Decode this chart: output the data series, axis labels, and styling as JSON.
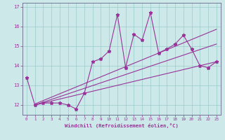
{
  "xlabel": "Windchill (Refroidissement éolien,°C)",
  "background_color": "#cce8e8",
  "line_color": "#993399",
  "grid_color": "#99cccc",
  "x_data": [
    0,
    1,
    2,
    3,
    4,
    5,
    6,
    7,
    8,
    9,
    10,
    11,
    12,
    13,
    14,
    15,
    16,
    17,
    18,
    19,
    20,
    21,
    22,
    23
  ],
  "y_main": [
    13.4,
    12.0,
    12.1,
    12.1,
    12.1,
    12.0,
    11.8,
    12.6,
    14.2,
    14.35,
    14.75,
    16.6,
    13.9,
    15.6,
    15.3,
    16.7,
    14.65,
    14.85,
    15.1,
    15.55,
    14.85,
    14.0,
    13.9,
    14.2
  ],
  "xlim": [
    -0.5,
    23.5
  ],
  "ylim": [
    11.5,
    17.2
  ],
  "yticks": [
    12,
    13,
    14,
    15,
    16,
    17
  ],
  "xticks": [
    0,
    1,
    2,
    3,
    4,
    5,
    6,
    7,
    8,
    9,
    10,
    11,
    12,
    13,
    14,
    15,
    16,
    17,
    18,
    19,
    20,
    21,
    22,
    23
  ],
  "trend_lines": [
    {
      "x0": 1,
      "y0": 12.0,
      "x1": 23,
      "y1": 14.2
    },
    {
      "x0": 1,
      "y0": 12.0,
      "x1": 23,
      "y1": 15.1
    },
    {
      "x0": 1,
      "y0": 12.05,
      "x1": 23,
      "y1": 15.85
    }
  ]
}
